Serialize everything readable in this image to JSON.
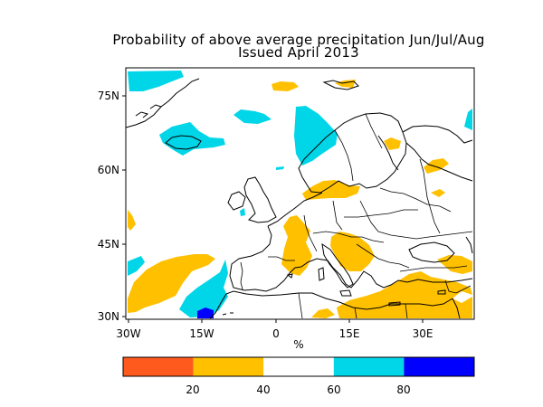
{
  "title": {
    "line1": "Probability of above average precipitation Jun/Jul/Aug",
    "line2": "Issued April 2013"
  },
  "map": {
    "lat_ticks": [
      "75N",
      "60N",
      "45N",
      "30N"
    ],
    "lon_ticks": [
      "30W",
      "15W",
      "0",
      "15E",
      "30E"
    ],
    "unit_label": "%",
    "shading_colors": {
      "below_20": "#ff5a1e",
      "20_40": "#ffc000",
      "60_80": "#00d6e8",
      "above_80": "#0000ff"
    },
    "land_fill": "#ffffff",
    "coast_color": "#000000"
  },
  "colorbar": {
    "bins": [
      {
        "from": 0,
        "to": 20,
        "color": "#ff5a1e"
      },
      {
        "from": 20,
        "to": 40,
        "color": "#ffc000"
      },
      {
        "from": 40,
        "to": 60,
        "color": "#ffffff"
      },
      {
        "from": 60,
        "to": 80,
        "color": "#00d6e8"
      },
      {
        "from": 80,
        "to": 100,
        "color": "#0000ff"
      }
    ],
    "tick_labels": [
      "20",
      "40",
      "60",
      "80"
    ]
  }
}
